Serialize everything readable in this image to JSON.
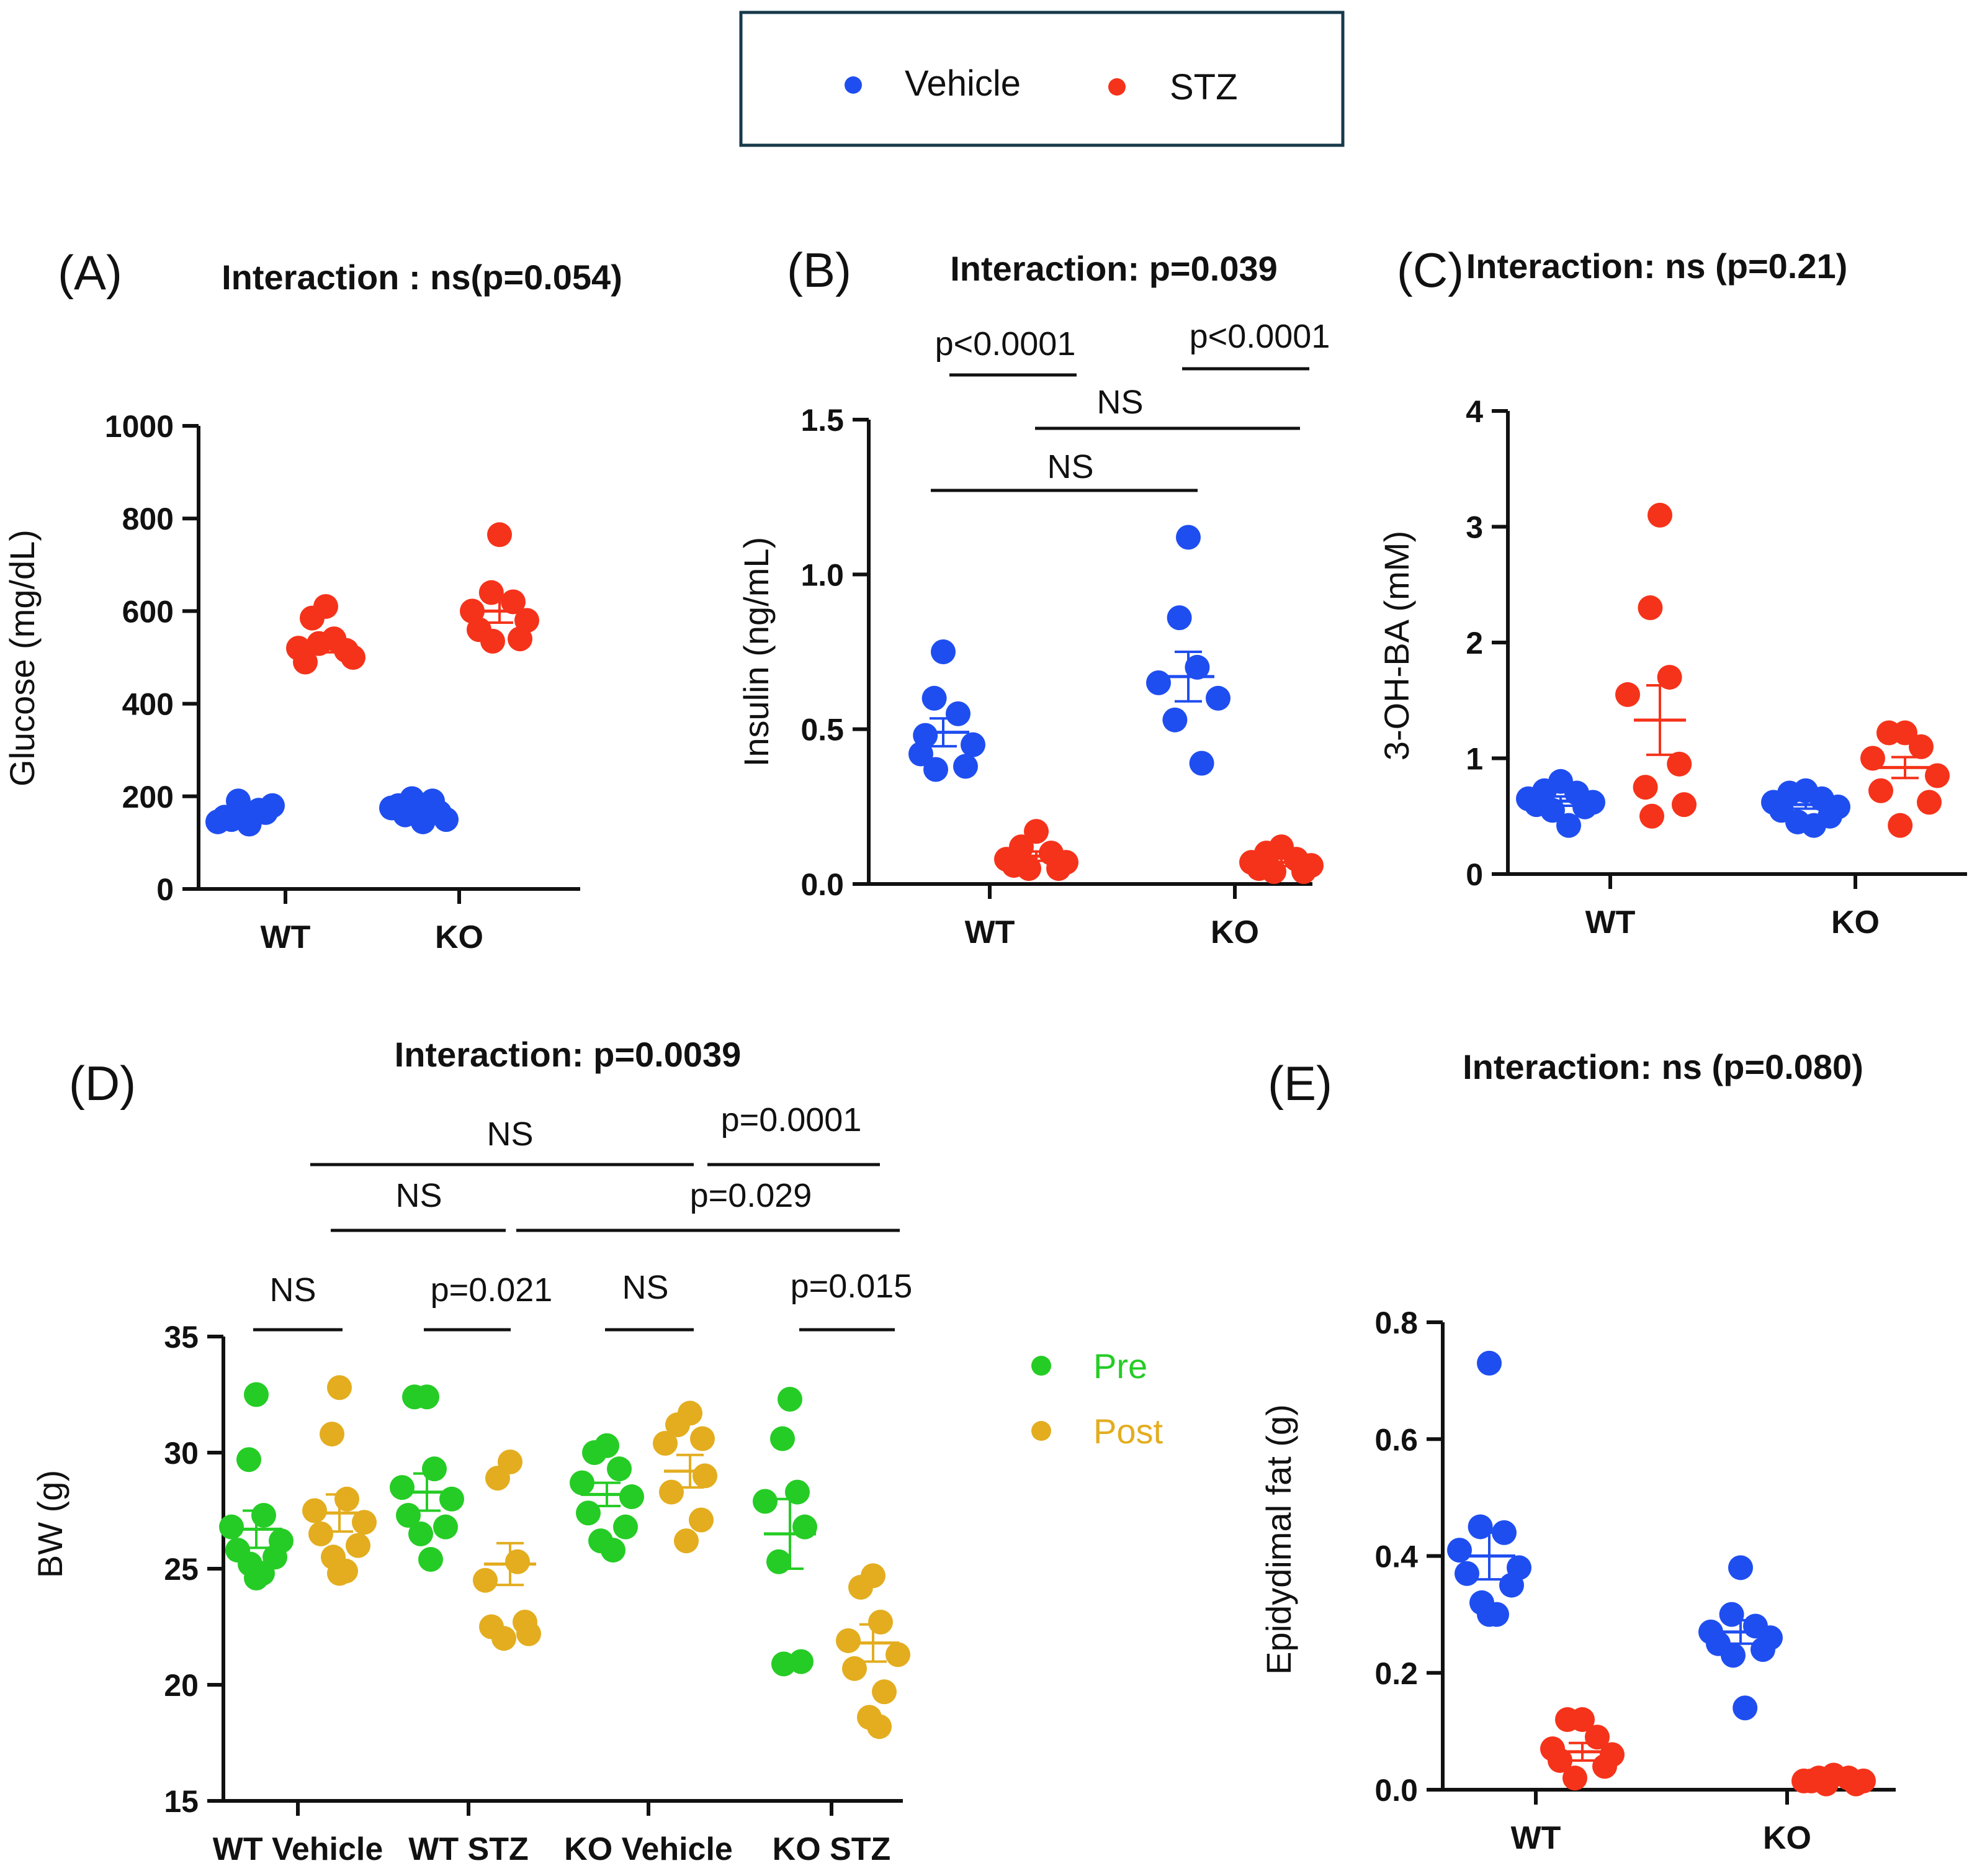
{
  "legend": {
    "items": [
      {
        "label": "Vehicle",
        "color": "#1f4ef0"
      },
      {
        "label": "STZ",
        "color": "#f5331a"
      }
    ]
  },
  "colors": {
    "vehicle": "#1f4ef0",
    "stz": "#f5331a",
    "pre": "#25cc25",
    "post": "#e3ad1f",
    "legend_border": "#173a4a"
  },
  "chart_data": [
    {
      "id": "A",
      "panel_label": "(A)",
      "type": "scatter",
      "title": "Interaction : ns(p=0.054)",
      "ylabel": "Glucose (mg/dL)",
      "xlabel": "",
      "ylim": [
        0,
        1000
      ],
      "yticks": [
        "0",
        "200",
        "400",
        "600",
        "800",
        "1000"
      ],
      "categories": [
        "WT",
        "KO"
      ],
      "series": [
        {
          "name": "Vehicle",
          "color_key": "vehicle",
          "values": [
            [
              160,
              150,
              170,
              145,
              180,
              155,
              165,
              190,
              140
            ],
            [
              170,
              160,
              190,
              175,
              150,
              180,
              165,
              195,
              145
            ]
          ],
          "mean": [
            155,
            172
          ],
          "sem": [
            6,
            7
          ]
        },
        {
          "name": "STZ",
          "color_key": "stz",
          "values": [
            [
              610,
              585,
              540,
              520,
              500,
              490,
              515,
              530
            ],
            [
              765,
              640,
              620,
              600,
              580,
              560,
              540,
              535
            ]
          ],
          "mean": [
            525,
            600
          ],
          "sem": [
            14,
            25
          ]
        }
      ],
      "annotations": []
    },
    {
      "id": "B",
      "panel_label": "(B)",
      "type": "scatter",
      "title": "Interaction: p=0.039",
      "ylabel": "Insulin (ng/mL)",
      "xlabel": "",
      "ylim": [
        0,
        1.5
      ],
      "yticks": [
        "0.0",
        "0.5",
        "1.0",
        "1.5"
      ],
      "categories": [
        "WT",
        "KO"
      ],
      "series": [
        {
          "name": "Vehicle",
          "color_key": "vehicle",
          "values": [
            [
              0.75,
              0.6,
              0.55,
              0.48,
              0.45,
              0.42,
              0.38,
              0.37
            ],
            [
              1.12,
              0.86,
              0.7,
              0.65,
              0.6,
              0.53,
              0.39
            ]
          ],
          "mean": [
            0.49,
            0.67
          ],
          "sem": [
            0.045,
            0.08
          ]
        },
        {
          "name": "STZ",
          "color_key": "stz",
          "values": [
            [
              0.17,
              0.12,
              0.1,
              0.08,
              0.07,
              0.06,
              0.05,
              0.05
            ],
            [
              0.12,
              0.1,
              0.08,
              0.07,
              0.06,
              0.05,
              0.04,
              0.04
            ]
          ],
          "mean": [
            0.09,
            0.07
          ],
          "sem": [
            0.015,
            0.012
          ]
        }
      ],
      "annotations": [
        "p<0.0001",
        "p<0.0001",
        "NS",
        "NS"
      ]
    },
    {
      "id": "C",
      "panel_label": "(C)",
      "type": "scatter",
      "title": "Interaction: ns (p=0.21)",
      "ylabel": "3-OH-BA (mM)",
      "xlabel": "",
      "ylim": [
        0,
        4
      ],
      "yticks": [
        "0",
        "1",
        "2",
        "3",
        "4"
      ],
      "categories": [
        "WT",
        "KO"
      ],
      "series": [
        {
          "name": "Vehicle",
          "color_key": "vehicle",
          "values": [
            [
              0.8,
              0.72,
              0.7,
              0.65,
              0.62,
              0.6,
              0.58,
              0.55,
              0.42
            ],
            [
              0.72,
              0.7,
              0.65,
              0.62,
              0.58,
              0.55,
              0.5,
              0.45,
              0.42
            ]
          ],
          "mean": [
            0.63,
            0.6
          ],
          "sem": [
            0.04,
            0.035
          ]
        },
        {
          "name": "STZ",
          "color_key": "stz",
          "values": [
            [
              3.1,
              2.3,
              1.7,
              1.55,
              0.95,
              0.75,
              0.6,
              0.5
            ],
            [
              1.22,
              1.22,
              1.1,
              1.0,
              0.85,
              0.72,
              0.62,
              0.42
            ]
          ],
          "mean": [
            1.33,
            0.92
          ],
          "sem": [
            0.3,
            0.09
          ]
        }
      ],
      "annotations": []
    },
    {
      "id": "D",
      "panel_label": "(D)",
      "type": "scatter",
      "title": "Interaction: p=0.0039",
      "ylabel": "BW (g)",
      "xlabel": "",
      "ylim": [
        15,
        35
      ],
      "yticks": [
        "15",
        "20",
        "25",
        "30",
        "35"
      ],
      "categories": [
        "WT Vehicle",
        "WT STZ",
        "KO Vehicle",
        "KO STZ"
      ],
      "series": [
        {
          "name": "Pre",
          "color_key": "pre",
          "values": [
            [
              32.5,
              29.7,
              27.3,
              26.8,
              26.2,
              25.8,
              25.5,
              25.2,
              24.8,
              24.6
            ],
            [
              32.4,
              32.4,
              29.3,
              28.5,
              28.0,
              27.3,
              26.8,
              26.5,
              25.4
            ],
            [
              30.3,
              30.0,
              29.3,
              28.7,
              28.1,
              27.4,
              26.8,
              26.2,
              25.8
            ],
            [
              32.3,
              30.6,
              28.3,
              27.9,
              26.8,
              25.3,
              21.0,
              20.9
            ]
          ],
          "mean": [
            26.7,
            28.3,
            28.2,
            26.5
          ],
          "sem": [
            0.8,
            0.8,
            0.5,
            1.5
          ]
        },
        {
          "name": "Post",
          "color_key": "post",
          "values": [
            [
              32.8,
              30.8,
              28.0,
              27.5,
              27.0,
              26.5,
              26.0,
              25.5,
              24.9,
              24.8
            ],
            [
              29.6,
              28.9,
              25.3,
              24.5,
              22.7,
              22.5,
              22.2,
              22.0
            ],
            [
              31.7,
              31.2,
              30.6,
              30.4,
              29.0,
              28.3,
              27.1,
              26.2
            ],
            [
              24.7,
              24.2,
              22.7,
              21.9,
              21.3,
              20.7,
              19.7,
              18.6,
              18.2
            ]
          ],
          "mean": [
            27.4,
            25.2,
            29.2,
            21.8
          ],
          "sem": [
            0.8,
            0.9,
            0.7,
            0.8
          ]
        }
      ],
      "annotations": [
        "NS",
        "p=0.0001",
        "NS",
        "p=0.029",
        "NS",
        "p=0.021",
        "NS",
        "p=0.015"
      ],
      "legend_items": [
        "Pre",
        "Post"
      ]
    },
    {
      "id": "E",
      "panel_label": "(E)",
      "type": "scatter",
      "title": "Interaction: ns (p=0.080)",
      "ylabel": "Epidydimal fat (g)",
      "xlabel": "",
      "ylim": [
        0,
        0.8
      ],
      "yticks": [
        "0.0",
        "0.2",
        "0.4",
        "0.6",
        "0.8"
      ],
      "categories": [
        "WT",
        "KO"
      ],
      "series": [
        {
          "name": "Vehicle",
          "color_key": "vehicle",
          "values": [
            [
              0.73,
              0.45,
              0.44,
              0.41,
              0.38,
              0.37,
              0.35,
              0.32,
              0.3,
              0.3
            ],
            [
              0.38,
              0.3,
              0.28,
              0.27,
              0.26,
              0.25,
              0.24,
              0.23,
              0.14
            ]
          ],
          "mean": [
            0.4,
            0.27
          ],
          "sem": [
            0.04,
            0.02
          ]
        },
        {
          "name": "STZ",
          "color_key": "stz",
          "values": [
            [
              0.12,
              0.12,
              0.09,
              0.07,
              0.06,
              0.05,
              0.04,
              0.02
            ],
            [
              0.025,
              0.02,
              0.02,
              0.015,
              0.015,
              0.015,
              0.01,
              0.01
            ]
          ],
          "mean": [
            0.065,
            0.015
          ],
          "sem": [
            0.015,
            0.003
          ]
        }
      ],
      "annotations": []
    }
  ]
}
